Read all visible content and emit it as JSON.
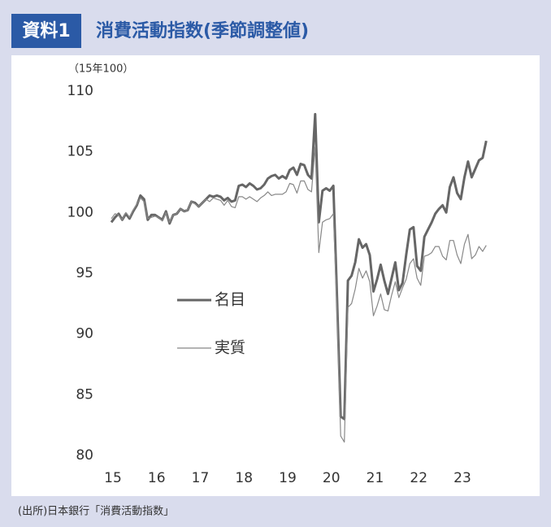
{
  "chart_data": {
    "type": "line",
    "figure_label": "資料1",
    "title": "消費活動指数(季節調整値)",
    "y_unit": "（15年100）",
    "source": "(出所)日本銀行「消費活動指数」",
    "categories": [
      "15",
      null,
      null,
      null,
      null,
      null,
      null,
      null,
      null,
      null,
      null,
      null,
      "16",
      null,
      null,
      null,
      null,
      null,
      null,
      null,
      null,
      null,
      null,
      null,
      "17",
      null,
      null,
      null,
      null,
      null,
      null,
      null,
      null,
      null,
      null,
      null,
      "18",
      null,
      null,
      null,
      null,
      null,
      null,
      null,
      null,
      null,
      null,
      null,
      "19",
      null,
      null,
      null,
      null,
      null,
      null,
      null,
      null,
      null,
      null,
      null,
      "20",
      null,
      null,
      null,
      null,
      null,
      null,
      null,
      null,
      null,
      null,
      null,
      "21",
      null,
      null,
      null,
      null,
      null,
      null,
      null,
      null,
      null,
      null,
      null,
      "22",
      null,
      null,
      null,
      null,
      null,
      null,
      null,
      null,
      null,
      null,
      null,
      "23",
      null,
      null,
      null,
      null,
      null,
      null,
      null
    ],
    "ylim": [
      80,
      110
    ],
    "yticks": [
      80,
      85,
      90,
      95,
      100,
      105,
      110
    ],
    "grid": false,
    "legend": "left",
    "series": [
      {
        "name": "名目",
        "color": "#666666",
        "width": 3,
        "values": [
          99.2,
          99.6,
          99.9,
          99.4,
          99.9,
          99.5,
          100.1,
          100.6,
          101.4,
          101.1,
          99.4,
          99.8,
          99.8,
          99.6,
          99.4,
          100.1,
          99.1,
          99.8,
          99.9,
          100.3,
          100.1,
          100.2,
          100.9,
          100.8,
          100.5,
          100.8,
          101.1,
          101.4,
          101.3,
          101.4,
          101.3,
          101.0,
          101.2,
          100.9,
          101.0,
          102.2,
          102.3,
          102.1,
          102.4,
          102.2,
          101.9,
          102.0,
          102.3,
          102.8,
          103.0,
          103.1,
          102.8,
          103.0,
          102.8,
          103.5,
          103.7,
          103.1,
          104.0,
          103.9,
          103.1,
          102.8,
          108.1,
          99.2,
          101.8,
          102.0,
          101.8,
          102.2,
          93.0,
          83.2,
          83.0,
          94.4,
          94.8,
          95.9,
          97.8,
          97.1,
          97.4,
          96.5,
          93.5,
          94.5,
          95.7,
          94.4,
          93.3,
          94.6,
          95.9,
          93.6,
          94.2,
          96.5,
          98.6,
          98.8,
          95.6,
          95.2,
          98.0,
          98.6,
          99.2,
          99.9,
          100.3,
          100.6,
          100.0,
          102.1,
          102.9,
          101.6,
          101.1,
          102.9,
          104.2,
          102.9,
          103.6,
          104.3,
          104.5,
          105.9
        ]
      },
      {
        "name": "実質",
        "color": "#888888",
        "width": 1.2,
        "values": [
          99.5,
          99.9,
          99.8,
          99.4,
          100.0,
          99.6,
          100.2,
          100.7,
          101.2,
          100.9,
          99.5,
          99.6,
          99.7,
          99.6,
          99.3,
          100.0,
          99.2,
          99.8,
          99.9,
          100.3,
          100.1,
          100.2,
          100.9,
          100.7,
          100.5,
          100.8,
          101.1,
          100.9,
          101.2,
          101.1,
          101.0,
          100.6,
          101.0,
          100.5,
          100.4,
          101.3,
          101.3,
          101.1,
          101.3,
          101.1,
          100.9,
          101.2,
          101.4,
          101.7,
          101.4,
          101.5,
          101.5,
          101.5,
          101.7,
          102.4,
          102.3,
          101.6,
          102.6,
          102.6,
          101.9,
          101.7,
          105.4,
          96.7,
          99.2,
          99.4,
          99.5,
          99.9,
          92.0,
          81.6,
          81.1,
          92.2,
          92.5,
          93.7,
          95.4,
          94.6,
          95.2,
          94.3,
          91.5,
          92.3,
          93.3,
          92.0,
          91.9,
          93.2,
          94.3,
          93.0,
          93.8,
          94.5,
          95.8,
          96.2,
          94.6,
          94.0,
          96.4,
          96.5,
          96.7,
          97.2,
          97.2,
          96.4,
          96.1,
          97.7,
          97.7,
          96.5,
          95.8,
          97.4,
          98.2,
          96.2,
          96.5,
          97.2,
          96.8,
          97.3
        ]
      }
    ]
  }
}
